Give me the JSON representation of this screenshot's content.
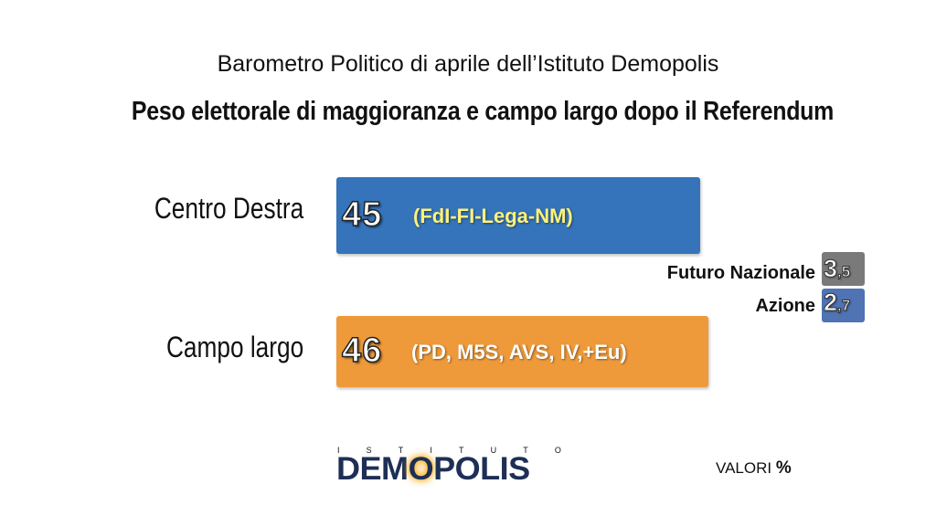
{
  "header": {
    "subtitle": "Barometro Politico di aprile dell’Istituto Demopolis",
    "title": "Peso elettorale di maggioranza e campo largo dopo il Referendum"
  },
  "chart_data": {
    "type": "bar",
    "orientation": "horizontal",
    "title": "Peso elettorale di maggioranza e campo largo dopo il Referendum",
    "subtitle": "Barometro Politico di aprile dell’Istituto Demopolis",
    "categories": [
      "Centro Destra",
      "Campo largo"
    ],
    "values": [
      45,
      46
    ],
    "value_labels": [
      "45",
      "46"
    ],
    "parties": [
      "(FdI-FI-Lega-NM)",
      "(PD, M5S, AVS, IV,+Eu)"
    ],
    "colors": [
      "#3574ba",
      "#ee9a3a"
    ],
    "secondary": [
      {
        "name": "Futuro Nazionale",
        "value": 3.5,
        "int_label": "3",
        "dec_label": ",5",
        "color": "#7a7a7a"
      },
      {
        "name": "Azione",
        "value": 2.7,
        "int_label": "2",
        "dec_label": ",7",
        "color": "#4f73b3"
      }
    ],
    "unit_note": "VALORI",
    "unit_symbol": "%"
  },
  "branding": {
    "logo_top": [
      "I",
      "S",
      "T",
      "I",
      "T",
      "U",
      "T",
      "O"
    ],
    "logo_pre": "DEM",
    "logo_o": "O",
    "logo_post": "POLIS"
  }
}
